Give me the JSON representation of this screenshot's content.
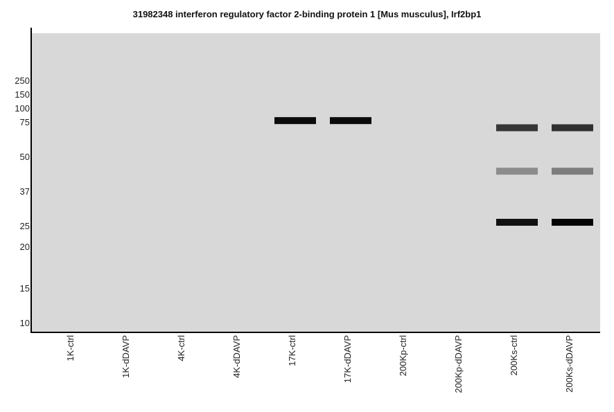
{
  "chart_data": {
    "type": "western-blot",
    "title": "31982348 interferon regulatory factor 2-binding protein 1 [Mus musculus], Irf2bp1",
    "y_ticks": [
      "250",
      "150",
      "100",
      "75",
      "50",
      "37",
      "25",
      "20",
      "15",
      "10"
    ],
    "lanes": [
      "1K-ctrl",
      "1K-dDAVP",
      "4K-ctrl",
      "4K-dDAVP",
      "17K-ctrl",
      "17K-dDAVP",
      "200Kp-ctrl",
      "200Kp-dDAVP",
      "200Ks-ctrl",
      "200Ks-dDAVP"
    ],
    "bands": [
      {
        "lane": "17K-ctrl",
        "mw": 77,
        "intensity": 0.95
      },
      {
        "lane": "17K-dDAVP",
        "mw": 77,
        "intensity": 0.95
      },
      {
        "lane": "200Ks-ctrl",
        "mw": 70,
        "intensity": 0.75
      },
      {
        "lane": "200Ks-dDAVP",
        "mw": 70,
        "intensity": 0.78
      },
      {
        "lane": "200Ks-ctrl",
        "mw": 44,
        "intensity": 0.35
      },
      {
        "lane": "200Ks-dDAVP",
        "mw": 44,
        "intensity": 0.42
      },
      {
        "lane": "200Ks-ctrl",
        "mw": 26,
        "intensity": 0.92
      },
      {
        "lane": "200Ks-dDAVP",
        "mw": 26,
        "intensity": 0.98
      }
    ],
    "background": "#d8d8d8",
    "band_color": "#000000"
  }
}
